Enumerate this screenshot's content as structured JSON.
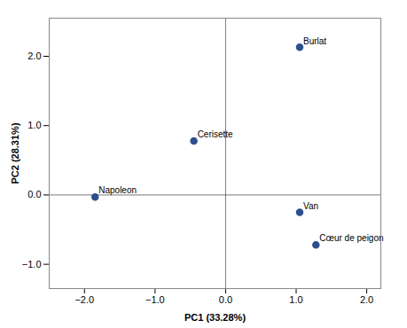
{
  "chart_data": {
    "type": "scatter",
    "x": [
      1.05,
      -0.45,
      -1.85,
      1.05,
      1.28
    ],
    "y": [
      2.13,
      0.78,
      -0.03,
      -0.25,
      -0.72
    ],
    "labels": [
      "Burlat",
      "Cerisette",
      "Napoleon",
      "Van",
      "Cœur de peigon"
    ],
    "xlabel": "PC1 (33.28%)",
    "ylabel": "PC2 (28.31%)",
    "xlim": [
      -2.5,
      2.2
    ],
    "ylim": [
      -1.35,
      2.55
    ],
    "xticks": [
      -2,
      -1,
      0,
      1,
      2
    ],
    "yticks": [
      -1,
      0,
      1,
      2
    ],
    "color": "#2D4F8E",
    "grid": false
  }
}
